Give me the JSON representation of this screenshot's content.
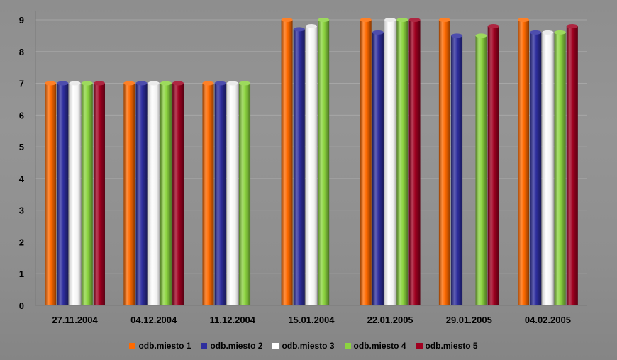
{
  "chart_data": {
    "type": "bar",
    "categories": [
      "27.11.2004",
      "04.12.2004",
      "11.12.2004",
      "15.01.2004",
      "22.01.2005",
      "29.01.2005",
      "04.02.2005"
    ],
    "series": [
      {
        "name": "odb.miesto 1",
        "color": "#ff6a00",
        "values": [
          7,
          7,
          7,
          9,
          9,
          9,
          9
        ]
      },
      {
        "name": "odb.miesto 2",
        "color": "#2e2e9e",
        "values": [
          7,
          7,
          7,
          8.7,
          8.6,
          8.5,
          8.6
        ]
      },
      {
        "name": "odb.miesto 3",
        "color": "#ffffff",
        "values": [
          7,
          7,
          7,
          8.8,
          9,
          null,
          8.6
        ]
      },
      {
        "name": "odb.miesto 4",
        "color": "#8cd440",
        "values": [
          7,
          7,
          7,
          9,
          9,
          8.5,
          8.6
        ]
      },
      {
        "name": "odb.miesto 5",
        "color": "#a00020",
        "values": [
          7,
          7,
          null,
          null,
          9,
          8.8,
          8.8
        ]
      }
    ],
    "yticks": [
      "0",
      "1",
      "2",
      "3",
      "4",
      "5",
      "6",
      "7",
      "8",
      "9"
    ],
    "ylim": [
      0,
      9
    ],
    "grid": true,
    "legend_position": "bottom"
  }
}
